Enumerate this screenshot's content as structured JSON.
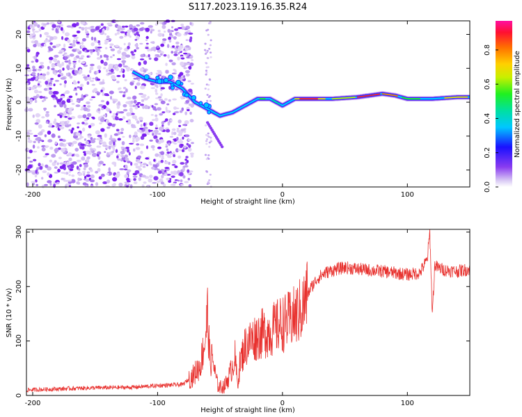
{
  "page_title": "S117.2023.119.16.35.R24",
  "chart_data": [
    {
      "type": "heatmap",
      "name": "spectrogram",
      "xlabel": "Height of straight line (km)",
      "ylabel": "Frequency (Hz)",
      "xlim": [
        -205,
        150
      ],
      "ylim": [
        -25,
        24
      ],
      "xticks": [
        -200,
        -100,
        0,
        100
      ],
      "yticks": [
        -20,
        -10,
        0,
        10,
        20
      ],
      "colorbar": {
        "label": "Normalized spectral amplitude",
        "range": [
          0,
          0.97
        ],
        "ticks": [
          0.0,
          0.2,
          0.4,
          0.6,
          0.8
        ],
        "colormap": [
          "#e6d8f5",
          "#b98af0",
          "#7b2ff0",
          "#1a10ff",
          "#00c8ff",
          "#00e0a0",
          "#20f020",
          "#c8f000",
          "#ffd000",
          "#ff7000",
          "#ff1030",
          "#ff10a0"
        ]
      },
      "ridge": {
        "x": [
          -120,
          -110,
          -100,
          -90,
          -80,
          -70,
          -60,
          -50,
          -40,
          -30,
          -20,
          -10,
          0,
          10,
          20,
          40,
          60,
          80,
          90,
          100,
          110,
          120,
          140,
          150
        ],
        "y": [
          9,
          7,
          6,
          6,
          4,
          0,
          -2,
          -4,
          -3,
          -1,
          1,
          1,
          -1,
          1,
          1,
          1,
          1.5,
          2.5,
          2,
          1,
          1,
          1,
          1.5,
          1.5
        ]
      }
    },
    {
      "type": "line",
      "name": "snr",
      "xlabel": "Height of straight line (km)",
      "ylabel": "SNR (10 * v/v)",
      "xlim": [
        -205,
        150
      ],
      "ylim": [
        0,
        305
      ],
      "xticks": [
        -200,
        -100,
        0,
        100
      ],
      "yticks": [
        0,
        100,
        200,
        300
      ],
      "color": "#e8312e",
      "series": [
        {
          "name": "SNR",
          "x": [
            -205,
            -180,
            -150,
            -120,
            -100,
            -80,
            -72,
            -66,
            -62,
            -60,
            -58,
            -56,
            -54,
            -52,
            -50,
            -46,
            -42,
            -38,
            -36,
            -34,
            -30,
            -26,
            -20,
            -14,
            -8,
            -2,
            4,
            10,
            16,
            22,
            28,
            34,
            40,
            50,
            60,
            70,
            80,
            90,
            100,
            110,
            116,
            118,
            120,
            122,
            124,
            130,
            140,
            150
          ],
          "y": [
            10,
            12,
            14,
            15,
            18,
            20,
            35,
            55,
            100,
            150,
            60,
            70,
            40,
            20,
            15,
            18,
            40,
            70,
            20,
            60,
            90,
            100,
            110,
            115,
            120,
            130,
            135,
            145,
            160,
            195,
            215,
            225,
            230,
            235,
            232,
            230,
            228,
            225,
            222,
            225,
            250,
            300,
            150,
            240,
            235,
            230,
            228,
            232
          ]
        }
      ]
    }
  ]
}
